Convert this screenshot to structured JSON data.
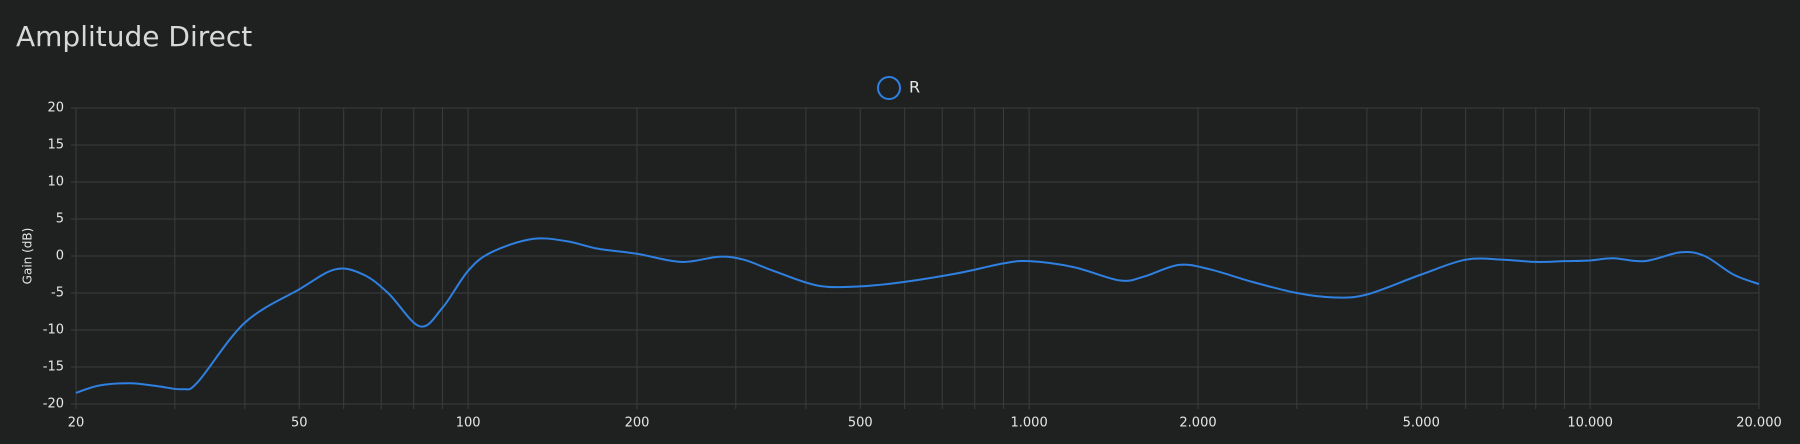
{
  "chart_data": {
    "type": "line",
    "title": "Amplitude Direct",
    "ylabel": "Gain (dB)",
    "log_x": true,
    "grid": true,
    "xlim": [
      20,
      20000
    ],
    "ylim": [
      -20,
      20
    ],
    "xticks": [
      20,
      50,
      100,
      200,
      500,
      {
        "value": 1000,
        "label": "1.000"
      },
      {
        "value": 2000,
        "label": "2.000"
      },
      {
        "value": 5000,
        "label": "5.000"
      },
      {
        "value": 10000,
        "label": "10.000"
      },
      {
        "value": 20000,
        "label": "20.000"
      }
    ],
    "xgrid": [
      20,
      30,
      40,
      50,
      60,
      70,
      80,
      90,
      100,
      200,
      300,
      400,
      500,
      600,
      700,
      800,
      900,
      1000,
      2000,
      3000,
      4000,
      5000,
      6000,
      7000,
      8000,
      9000,
      10000,
      20000
    ],
    "yticks": [
      -20,
      -15,
      -10,
      -5,
      0,
      5,
      10,
      15,
      20
    ],
    "x": [
      20,
      22,
      25,
      28,
      31,
      33,
      40,
      50,
      58,
      65,
      72,
      82,
      90,
      100,
      110,
      130,
      150,
      170,
      200,
      240,
      280,
      310,
      350,
      420,
      500,
      600,
      750,
      900,
      1000,
      1200,
      1450,
      1600,
      1850,
      2100,
      2500,
      3000,
      3500,
      4000,
      5000,
      6000,
      7000,
      8000,
      9000,
      10000,
      11000,
      12500,
      14500,
      16000,
      18000,
      20000
    ],
    "series": [
      {
        "name": "R",
        "color": "#2f80e0",
        "values": [
          -18.5,
          -17.5,
          -17.2,
          -17.6,
          -18,
          -17,
          -9,
          -4.5,
          -1.8,
          -2.5,
          -5,
          -9.5,
          -7,
          -2,
          0.5,
          2.3,
          2,
          1,
          0.3,
          -0.8,
          -0.1,
          -0.5,
          -2,
          -4,
          -4.1,
          -3.5,
          -2.3,
          -1,
          -0.7,
          -1.5,
          -3.3,
          -2.8,
          -1.2,
          -1.8,
          -3.5,
          -5,
          -5.6,
          -5.2,
          -2.5,
          -0.5,
          -0.5,
          -0.8,
          -0.7,
          -0.6,
          -0.3,
          -0.7,
          0.5,
          0,
          -2.5,
          -3.8
        ]
      }
    ]
  }
}
